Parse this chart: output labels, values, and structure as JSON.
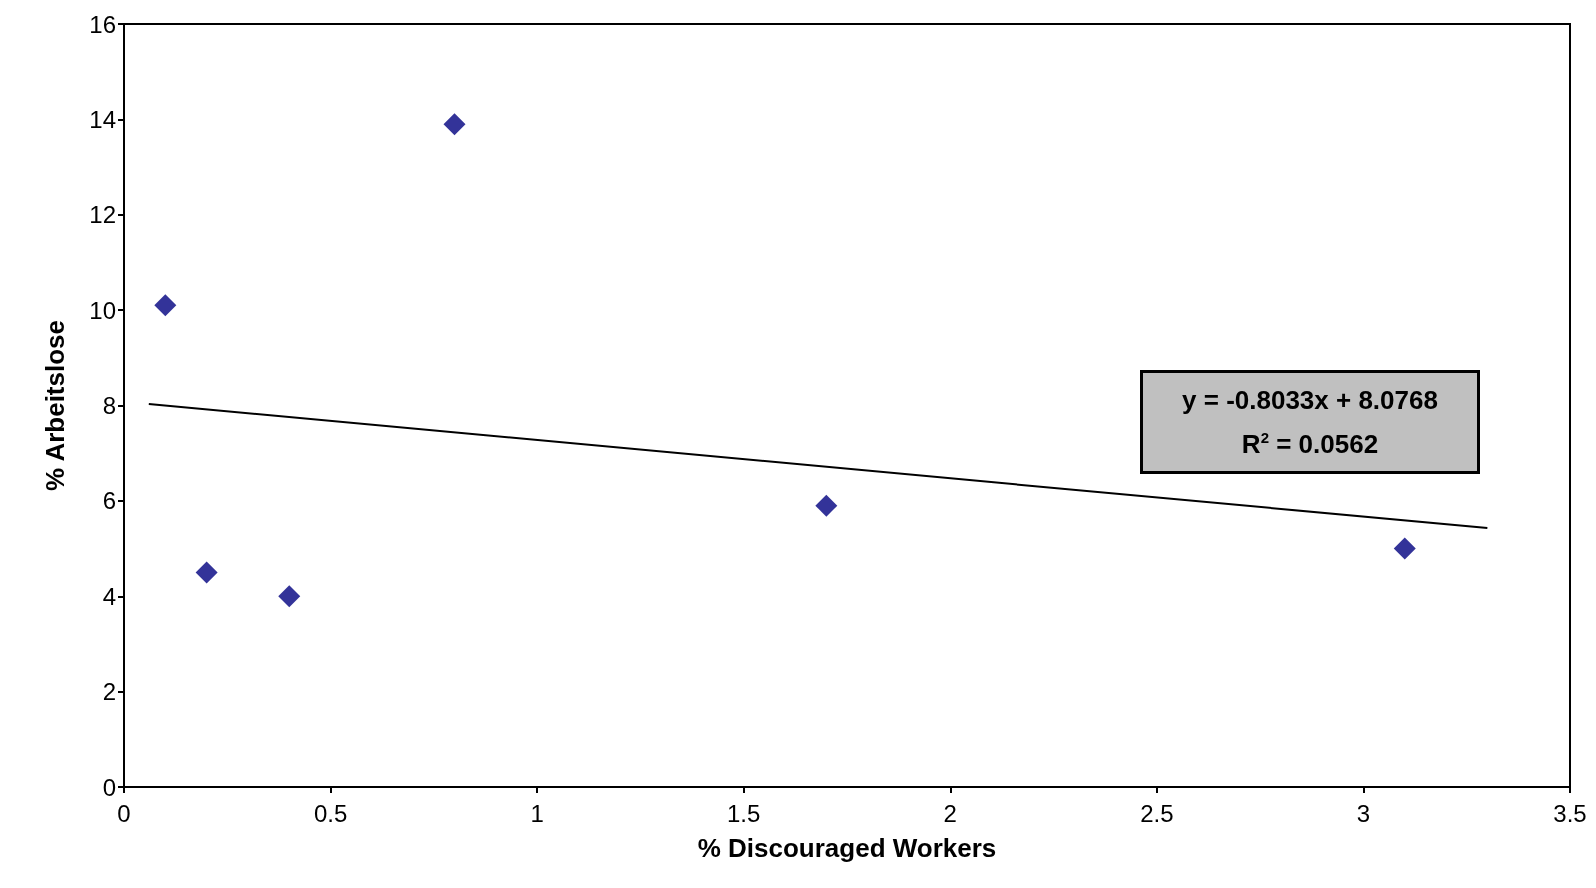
{
  "chart_data": {
    "type": "scatter",
    "xlabel": "% Discouraged Workers",
    "ylabel": "% Arbeitslose",
    "xlim": [
      0,
      3.5
    ],
    "xticks": [
      0,
      0.5,
      1,
      1.5,
      2,
      2.5,
      3,
      3.5
    ],
    "ylim": [
      0,
      16
    ],
    "yticks": [
      0,
      2,
      4,
      6,
      8,
      10,
      12,
      14,
      16
    ],
    "grid": false,
    "series": [
      {
        "color": "#000080",
        "marker": "diamond",
        "x": [
          0.1,
          0.2,
          0.4,
          0.8,
          1.7,
          3.1
        ],
        "values": [
          10.1,
          4.5,
          4.0,
          13.9,
          5.9,
          5.0
        ]
      },
      {
        "type": "line",
        "color": "#000000",
        "x": [
          0.06,
          3.3
        ],
        "values": [
          8.03,
          5.43
        ],
        "line_style": "solid",
        "marker": "none"
      }
    ],
    "annotations": [
      "y = -0.8033x + 8.0768",
      "R$^{2}$ = 0.0562"
    ]
  }
}
